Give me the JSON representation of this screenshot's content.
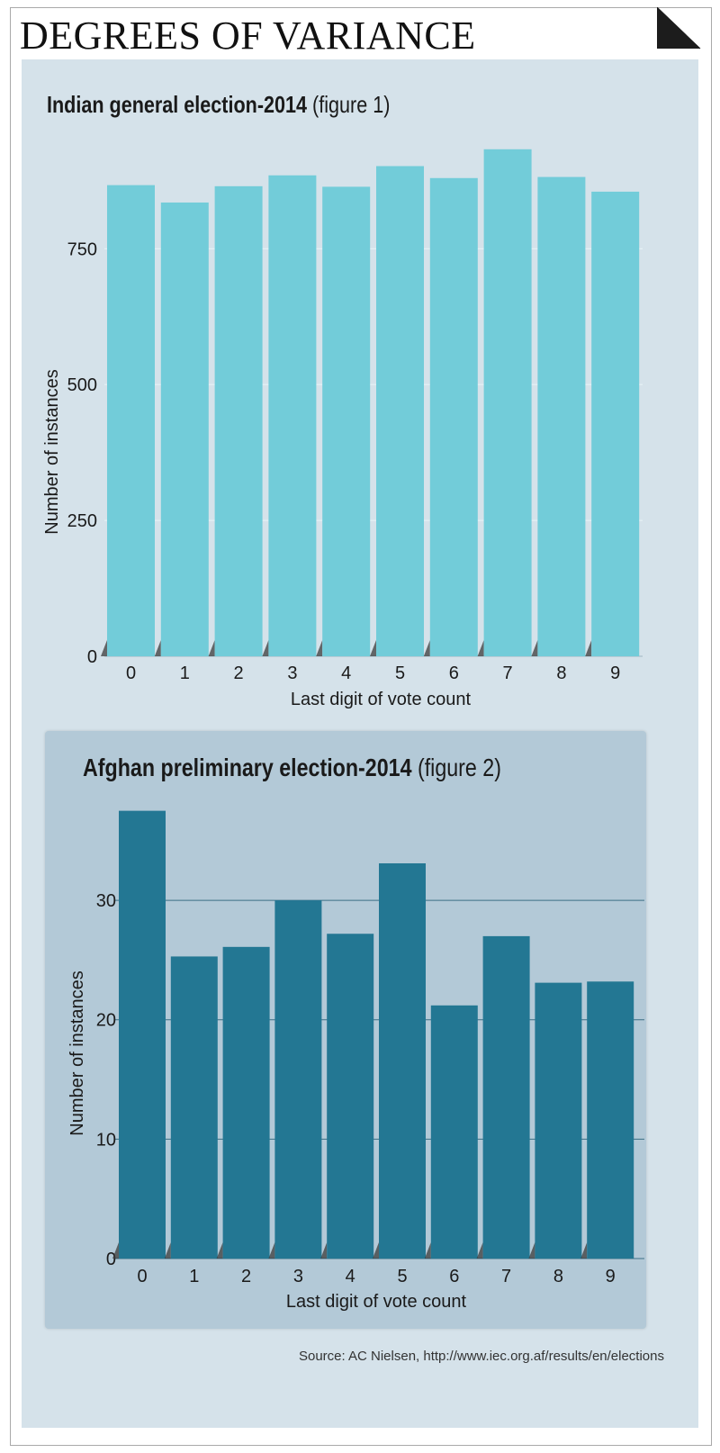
{
  "headline": "DEGREES OF VARIANCE",
  "source": "Source: AC Nielsen, http://www.iec.org.af/results/en/elections",
  "colors": {
    "panel": "#d5e2ea",
    "inner_panel": "#b3c9d7",
    "chart1_bar": "#72ccd9",
    "chart2_bar": "#237793",
    "corner": "#1c1c1c"
  },
  "chart_data": [
    {
      "type": "bar",
      "title_main": "Indian general election-2014",
      "title_sub": "(figure 1)",
      "categories": [
        "0",
        "1",
        "2",
        "3",
        "4",
        "5",
        "6",
        "7",
        "8",
        "9"
      ],
      "values": [
        867,
        835,
        865,
        885,
        864,
        902,
        880,
        933,
        882,
        855
      ],
      "xlabel": "Last digit of vote count",
      "ylabel": "Number of instances",
      "ylim": [
        0,
        960
      ],
      "yticks": [
        0,
        250,
        500,
        750
      ],
      "grid": true
    },
    {
      "type": "bar",
      "title_main": "Afghan preliminary election-2014",
      "title_sub": "(figure 2)",
      "categories": [
        "0",
        "1",
        "2",
        "3",
        "4",
        "5",
        "6",
        "7",
        "8",
        "9"
      ],
      "values": [
        37.5,
        25.3,
        26.1,
        30.0,
        27.2,
        33.1,
        21.2,
        27.0,
        23.1,
        23.2
      ],
      "xlabel": "Last digit of vote count",
      "ylabel": "Number of instances",
      "ylim": [
        0,
        38
      ],
      "yticks": [
        0,
        10,
        20,
        30
      ],
      "grid": true
    }
  ]
}
